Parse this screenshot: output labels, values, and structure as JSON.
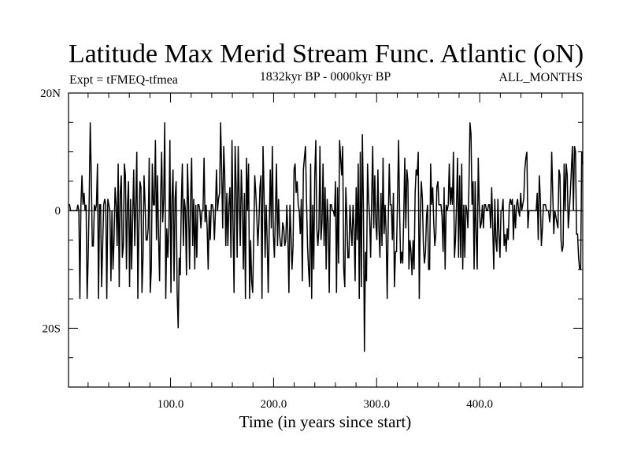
{
  "chart_data": {
    "type": "line",
    "title": "Latitude Max Merid Stream Func. Atlantic (oN)",
    "subtitle_left": "Expt = tFMEQ-tfmea",
    "subtitle_center": "1832kyr BP - 0000kyr BP",
    "subtitle_right": "ALL_MONTHS",
    "xlabel": "Time (in years since start)",
    "ylabel": "",
    "xlim": [
      1,
      500
    ],
    "ylim": [
      -30,
      20
    ],
    "x_ticks": [
      {
        "value": 100,
        "label": "100.0"
      },
      {
        "value": 200,
        "label": "200.0"
      },
      {
        "value": 300,
        "label": "300.0"
      },
      {
        "value": 400,
        "label": "400.0"
      }
    ],
    "y_ticks": [
      {
        "value": 20,
        "label": "20N"
      },
      {
        "value": 0,
        "label": "0"
      },
      {
        "value": -20,
        "label": "20S"
      }
    ],
    "grid": false,
    "legend": "none",
    "line_color": "#000000",
    "series": [
      {
        "values": [
          1,
          1,
          0,
          0,
          0,
          0,
          0,
          0,
          0,
          1,
          0,
          -15,
          1,
          6,
          1,
          3,
          0,
          1,
          -15,
          -8,
          2,
          15,
          6,
          -6,
          -6,
          1,
          0,
          1,
          8,
          -15,
          1,
          1,
          -13,
          -6,
          1,
          2,
          1,
          -15,
          2,
          1,
          0,
          -12,
          0,
          -10,
          -5,
          4,
          1,
          -6,
          8,
          -13,
          3,
          6,
          -8,
          -6,
          8,
          6,
          -10,
          1,
          5,
          -13,
          2,
          -10,
          -1,
          7,
          -6,
          1,
          10,
          -15,
          -3,
          5,
          4,
          -14,
          -8,
          6,
          1,
          -5,
          -5,
          -3,
          9,
          -14,
          -10,
          8,
          1,
          1,
          12,
          -5,
          6,
          -4,
          -12,
          2,
          10,
          -2,
          2,
          15,
          -15,
          -3,
          -8,
          -3,
          12,
          -14,
          2,
          7,
          -12,
          2,
          5,
          -14,
          -20,
          -8,
          -11,
          1,
          8,
          -6,
          2,
          0,
          -11,
          8,
          1,
          -10,
          2,
          9,
          -6,
          2,
          -10,
          1,
          -8,
          1,
          1,
          0,
          -3,
          0,
          0,
          9,
          -2,
          1,
          -3,
          -10,
          0,
          -5,
          1,
          1,
          0,
          -5,
          0,
          7,
          0,
          2,
          3,
          15,
          7,
          -3,
          11,
          6,
          -6,
          3,
          -6,
          1,
          4,
          -8,
          12,
          -2,
          -14,
          11,
          4,
          -8,
          11,
          2,
          -6,
          7,
          1,
          -10,
          3,
          -15,
          9,
          0,
          8,
          -15,
          -5,
          -12,
          -14,
          -5,
          6,
          3,
          -1,
          -6,
          -2,
          4,
          6,
          -15,
          11,
          3,
          -8,
          1,
          -5,
          -14,
          -3,
          7,
          -3,
          11,
          -4,
          -8,
          0,
          8,
          -6,
          2,
          -4,
          -6,
          -6,
          -2,
          -3,
          -6,
          -5,
          1,
          -4,
          -14,
          1,
          -4,
          -10,
          -6,
          7,
          8,
          3,
          5,
          1,
          0,
          -4,
          2,
          -12,
          7,
          9,
          11,
          2,
          -6,
          -10,
          -13,
          8,
          -15,
          1,
          -10,
          6,
          12,
          -3,
          -6,
          -3,
          11,
          -5,
          -2,
          8,
          -6,
          4,
          -10,
          2,
          -2,
          -14,
          1,
          1,
          0,
          0,
          -1,
          5,
          -14,
          4,
          -9,
          12,
          9,
          6,
          11,
          -10,
          -13,
          4,
          -1,
          -8,
          -8,
          1,
          -3,
          -6,
          1,
          -3,
          -12,
          4,
          -5,
          8,
          -15,
          10,
          -13,
          13,
          1,
          -24,
          -7,
          -12,
          8,
          2,
          -1,
          -8,
          2,
          11,
          -3,
          6,
          -2,
          -5,
          7,
          -3,
          -8,
          3,
          -6,
          9,
          -4,
          1,
          -4,
          -15,
          -2,
          8,
          1,
          1,
          -5,
          3,
          -13,
          -7,
          -7,
          2,
          12,
          0,
          -9,
          -7,
          -9,
          -1,
          9,
          -3,
          7,
          5,
          -10,
          -5,
          -7,
          -11,
          -5,
          -10,
          3,
          7,
          6,
          10,
          -15,
          -1,
          5,
          2,
          -6,
          -9,
          -7,
          -1,
          1,
          -10,
          -10,
          8,
          1,
          4,
          -2,
          -6,
          -4,
          4,
          5,
          1,
          1,
          1,
          -1,
          -7,
          4,
          -10,
          1,
          0,
          1,
          8,
          1,
          4,
          1,
          10,
          -8,
          -5,
          1,
          9,
          -8,
          6,
          -8,
          8,
          -10,
          1,
          -8,
          1,
          0,
          -3,
          4,
          15,
          13,
          1,
          5,
          -10,
          5,
          -4,
          -10,
          9,
          1,
          -3,
          -2,
          1,
          -3,
          1,
          1,
          0,
          0,
          1,
          1,
          -3,
          4,
          -3,
          -10,
          2,
          -5,
          -7,
          2,
          -4,
          -8,
          0,
          0,
          2,
          -6,
          -4,
          -7,
          -3,
          -5,
          1,
          2,
          1,
          2,
          -5,
          1,
          -3,
          1,
          2,
          0,
          -1,
          3,
          0,
          1,
          2,
          7,
          9,
          10,
          -3,
          0,
          0,
          0,
          0,
          0,
          0,
          0,
          0,
          3,
          -5,
          6,
          2,
          -6,
          -3,
          1,
          1,
          1,
          0,
          0,
          0,
          -2,
          0,
          10,
          3,
          -4,
          0,
          -1,
          -2,
          -3,
          7,
          6,
          -5,
          -7,
          -6,
          8,
          0,
          8,
          6,
          -3,
          0,
          3,
          7,
          11,
          0,
          11,
          10,
          -4,
          -4,
          -8,
          -10,
          -10,
          10,
          8
        ]
      }
    ]
  }
}
